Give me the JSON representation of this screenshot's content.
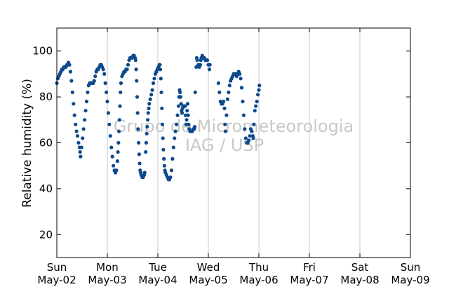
{
  "watermark": {
    "line1": "Grupo de Micrometeorologia",
    "line2": "IAG / USP"
  },
  "colors": {
    "points": "#0d4a8c",
    "grid": "#c8c8c8",
    "watermark": "#c8c8c8"
  },
  "chart_data": {
    "type": "scatter",
    "title": "",
    "xlabel": "",
    "ylabel": "Relative humidity (%)",
    "xlim": [
      "2011-05-02 00:00",
      "2011-05-09 00:00"
    ],
    "ylim": [
      10,
      110
    ],
    "yticks": [
      20,
      40,
      60,
      80,
      100
    ],
    "grid": "vertical at day boundaries",
    "xticks": [
      {
        "day": "Sun",
        "date": "May-02"
      },
      {
        "day": "Mon",
        "date": "May-03"
      },
      {
        "day": "Tue",
        "date": "May-04"
      },
      {
        "day": "Wed",
        "date": "May-05"
      },
      {
        "day": "Thu",
        "date": "May-06"
      },
      {
        "day": "Fri",
        "date": "May-07"
      },
      {
        "day": "Sat",
        "date": "May-08"
      },
      {
        "day": "Sun",
        "date": "May-09"
      }
    ],
    "series": [
      {
        "x_unit": "days since May-02 00:00",
        "marker": "dot",
        "points": [
          [
            0.0,
            86
          ],
          [
            0.02,
            88
          ],
          [
            0.04,
            89
          ],
          [
            0.06,
            90
          ],
          [
            0.08,
            91
          ],
          [
            0.1,
            92
          ],
          [
            0.12,
            92
          ],
          [
            0.14,
            93
          ],
          [
            0.16,
            93
          ],
          [
            0.18,
            93
          ],
          [
            0.2,
            94
          ],
          [
            0.22,
            94
          ],
          [
            0.23,
            95
          ],
          [
            0.25,
            94
          ],
          [
            0.27,
            91
          ],
          [
            0.29,
            87
          ],
          [
            0.31,
            82
          ],
          [
            0.33,
            77
          ],
          [
            0.35,
            72
          ],
          [
            0.37,
            68
          ],
          [
            0.39,
            65
          ],
          [
            0.41,
            63
          ],
          [
            0.43,
            60
          ],
          [
            0.45,
            58
          ],
          [
            0.46,
            56
          ],
          [
            0.47,
            54
          ],
          [
            0.49,
            58
          ],
          [
            0.51,
            62
          ],
          [
            0.53,
            66
          ],
          [
            0.55,
            70
          ],
          [
            0.57,
            74
          ],
          [
            0.59,
            78
          ],
          [
            0.61,
            82
          ],
          [
            0.63,
            85
          ],
          [
            0.65,
            86
          ],
          [
            0.68,
            86
          ],
          [
            0.7,
            86
          ],
          [
            0.72,
            86
          ],
          [
            0.74,
            87
          ],
          [
            0.76,
            89
          ],
          [
            0.78,
            91
          ],
          [
            0.8,
            92
          ],
          [
            0.82,
            92
          ],
          [
            0.84,
            93
          ],
          [
            0.86,
            94
          ],
          [
            0.88,
            94
          ],
          [
            0.9,
            93
          ],
          [
            0.92,
            92
          ],
          [
            0.94,
            90
          ],
          [
            0.96,
            86
          ],
          [
            0.98,
            82
          ],
          [
            1.0,
            78
          ],
          [
            1.02,
            73
          ],
          [
            1.04,
            68
          ],
          [
            1.06,
            63
          ],
          [
            1.08,
            58
          ],
          [
            1.1,
            54
          ],
          [
            1.12,
            50
          ],
          [
            1.14,
            48
          ],
          [
            1.16,
            47
          ],
          [
            1.18,
            48
          ],
          [
            1.2,
            52
          ],
          [
            1.21,
            56
          ],
          [
            1.22,
            60
          ],
          [
            1.23,
            65
          ],
          [
            1.24,
            70
          ],
          [
            1.25,
            76
          ],
          [
            1.26,
            82
          ],
          [
            1.27,
            86
          ],
          [
            1.29,
            89
          ],
          [
            1.31,
            90
          ],
          [
            1.33,
            91
          ],
          [
            1.35,
            91
          ],
          [
            1.37,
            92
          ],
          [
            1.39,
            92
          ],
          [
            1.41,
            94
          ],
          [
            1.43,
            96
          ],
          [
            1.45,
            97
          ],
          [
            1.47,
            97
          ],
          [
            1.49,
            97
          ],
          [
            1.51,
            98
          ],
          [
            1.53,
            98
          ],
          [
            1.55,
            97
          ],
          [
            1.56,
            96
          ],
          [
            1.57,
            92
          ],
          [
            1.58,
            87
          ],
          [
            1.59,
            80
          ],
          [
            1.6,
            73
          ],
          [
            1.61,
            66
          ],
          [
            1.62,
            60
          ],
          [
            1.63,
            55
          ],
          [
            1.64,
            51
          ],
          [
            1.65,
            48
          ],
          [
            1.66,
            47
          ],
          [
            1.67,
            46
          ],
          [
            1.69,
            45
          ],
          [
            1.71,
            45
          ],
          [
            1.73,
            46
          ],
          [
            1.74,
            47
          ],
          [
            1.76,
            56
          ],
          [
            1.77,
            60
          ],
          [
            1.78,
            64
          ],
          [
            1.79,
            67
          ],
          [
            1.8,
            70
          ],
          [
            1.81,
            73
          ],
          [
            1.82,
            75
          ],
          [
            1.83,
            77
          ],
          [
            1.85,
            79
          ],
          [
            1.87,
            81
          ],
          [
            1.89,
            83
          ],
          [
            1.91,
            86
          ],
          [
            1.93,
            88
          ],
          [
            1.95,
            90
          ],
          [
            1.97,
            91
          ],
          [
            1.99,
            92
          ],
          [
            2.01,
            93
          ],
          [
            2.03,
            94
          ],
          [
            2.04,
            94
          ],
          [
            2.05,
            92
          ],
          [
            2.06,
            88
          ],
          [
            2.07,
            82
          ],
          [
            2.08,
            75
          ],
          [
            2.09,
            68
          ],
          [
            2.1,
            62
          ],
          [
            2.11,
            57
          ],
          [
            2.12,
            53
          ],
          [
            2.13,
            50
          ],
          [
            2.14,
            48
          ],
          [
            2.15,
            47
          ],
          [
            2.17,
            46
          ],
          [
            2.19,
            45
          ],
          [
            2.21,
            44
          ],
          [
            2.23,
            44
          ],
          [
            2.25,
            45
          ],
          [
            2.27,
            48
          ],
          [
            2.29,
            53
          ],
          [
            2.31,
            58
          ],
          [
            2.33,
            62
          ],
          [
            2.35,
            65
          ],
          [
            2.37,
            68
          ],
          [
            2.39,
            72
          ],
          [
            2.41,
            76
          ],
          [
            2.42,
            80
          ],
          [
            2.43,
            83
          ],
          [
            2.44,
            82
          ],
          [
            2.45,
            80
          ],
          [
            2.46,
            77
          ],
          [
            2.47,
            74
          ],
          [
            2.48,
            73
          ],
          [
            2.49,
            75
          ],
          [
            2.5,
            76
          ],
          [
            2.52,
            76
          ],
          [
            2.54,
            76
          ],
          [
            2.55,
            72
          ],
          [
            2.56,
            68
          ],
          [
            2.57,
            70
          ],
          [
            2.58,
            74
          ],
          [
            2.59,
            77
          ],
          [
            2.6,
            72
          ],
          [
            2.61,
            68
          ],
          [
            2.62,
            66
          ],
          [
            2.64,
            65
          ],
          [
            2.66,
            65
          ],
          [
            2.68,
            65
          ],
          [
            2.7,
            66
          ],
          [
            2.72,
            66
          ],
          [
            2.73,
            67
          ],
          [
            2.74,
            82
          ],
          [
            2.76,
            93
          ],
          [
            2.77,
            97
          ],
          [
            2.78,
            96
          ],
          [
            2.8,
            94
          ],
          [
            2.82,
            93
          ],
          [
            2.84,
            94
          ],
          [
            2.85,
            96
          ],
          [
            2.86,
            97
          ],
          [
            2.88,
            98
          ],
          [
            2.9,
            97
          ],
          [
            2.92,
            97
          ],
          [
            2.94,
            96
          ],
          [
            2.96,
            96
          ],
          [
            2.98,
            96
          ],
          [
            3.0,
            94
          ],
          [
            3.02,
            92
          ],
          [
            3.03,
            94
          ],
          [
            3.2,
            86
          ],
          [
            3.22,
            82
          ],
          [
            3.24,
            78
          ],
          [
            3.26,
            77
          ],
          [
            3.28,
            77
          ],
          [
            3.3,
            78
          ],
          [
            3.32,
            75
          ],
          [
            3.33,
            68
          ],
          [
            3.34,
            65
          ],
          [
            3.36,
            72
          ],
          [
            3.38,
            79
          ],
          [
            3.4,
            82
          ],
          [
            3.42,
            85
          ],
          [
            3.44,
            87
          ],
          [
            3.46,
            88
          ],
          [
            3.48,
            89
          ],
          [
            3.5,
            90
          ],
          [
            3.52,
            90
          ],
          [
            3.54,
            90
          ],
          [
            3.56,
            89
          ],
          [
            3.58,
            90
          ],
          [
            3.6,
            91
          ],
          [
            3.62,
            90
          ],
          [
            3.64,
            88
          ],
          [
            3.66,
            84
          ],
          [
            3.68,
            78
          ],
          [
            3.7,
            72
          ],
          [
            3.72,
            66
          ],
          [
            3.74,
            62
          ],
          [
            3.76,
            60
          ],
          [
            3.78,
            60
          ],
          [
            3.8,
            61
          ],
          [
            3.82,
            63
          ],
          [
            3.84,
            66
          ],
          [
            3.86,
            65
          ],
          [
            3.88,
            63
          ],
          [
            3.89,
            62
          ],
          [
            3.9,
            68
          ],
          [
            3.92,
            74
          ],
          [
            3.94,
            76
          ],
          [
            3.96,
            78
          ],
          [
            3.98,
            81
          ],
          [
            4.0,
            83
          ],
          [
            4.01,
            85
          ]
        ]
      }
    ]
  }
}
